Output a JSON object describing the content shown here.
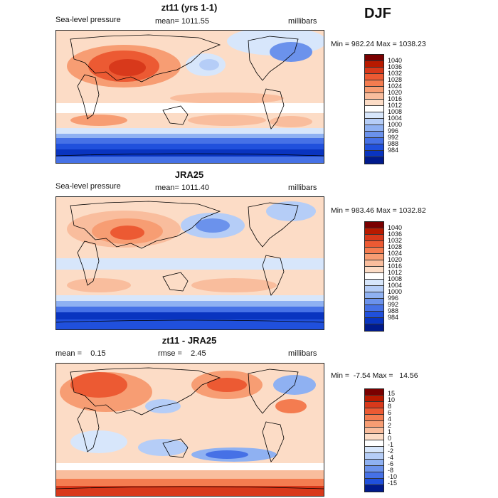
{
  "season": "DJF",
  "colors": {
    "full": [
      "#7a0000",
      "#b81a00",
      "#d8391b",
      "#ec5a33",
      "#f47c50",
      "#f79d73",
      "#f9bd9d",
      "#fcdcc6",
      "#ffffff",
      "#d7e6fb",
      "#b5cdf7",
      "#8fb1f2",
      "#6b92ec",
      "#4671e6",
      "#2050dc",
      "#0934c0",
      "#001a8c"
    ],
    "diff": [
      "#7a0000",
      "#b81a00",
      "#d8391b",
      "#ec5a33",
      "#f47c50",
      "#f79d73",
      "#f9bd9d",
      "#fcdcc6",
      "#ffffff",
      "#d7e6fb",
      "#b5cdf7",
      "#8fb1f2",
      "#6b92ec",
      "#4671e6",
      "#2050dc",
      "#001a8c"
    ]
  },
  "panels": [
    {
      "title": "zt11 (yrs 1-1)",
      "left_label": "Sea-level pressure",
      "center_label": "mean= 1011.55",
      "right_label": "millibars",
      "stats": "Min = 982.24 Max = 1038.23",
      "colorbar_levels": [
        "1040",
        "1036",
        "1032",
        "1028",
        "1024",
        "1020",
        "1016",
        "1012",
        "1008",
        "1004",
        "1000",
        "996",
        "992",
        "988",
        "984"
      ]
    },
    {
      "title": "JRA25",
      "left_label": "Sea-level pressure",
      "center_label": "mean= 1011.40",
      "right_label": "millibars",
      "stats": "Min = 983.46 Max = 1032.82",
      "colorbar_levels": [
        "1040",
        "1036",
        "1032",
        "1028",
        "1024",
        "1020",
        "1016",
        "1012",
        "1008",
        "1004",
        "1000",
        "996",
        "992",
        "988",
        "984"
      ]
    },
    {
      "title": "zt11 - JRA25",
      "left_label": "mean =    0.15",
      "center_label": "rmse =    2.45",
      "right_label": "millibars",
      "stats": "Min =  -7.54 Max =   14.56",
      "colorbar_levels": [
        "15",
        "10",
        "8",
        "6",
        "4",
        "2",
        "1",
        "0",
        "-1",
        "-2",
        "-4",
        "-6",
        "-8",
        "-10",
        "-15"
      ]
    }
  ]
}
